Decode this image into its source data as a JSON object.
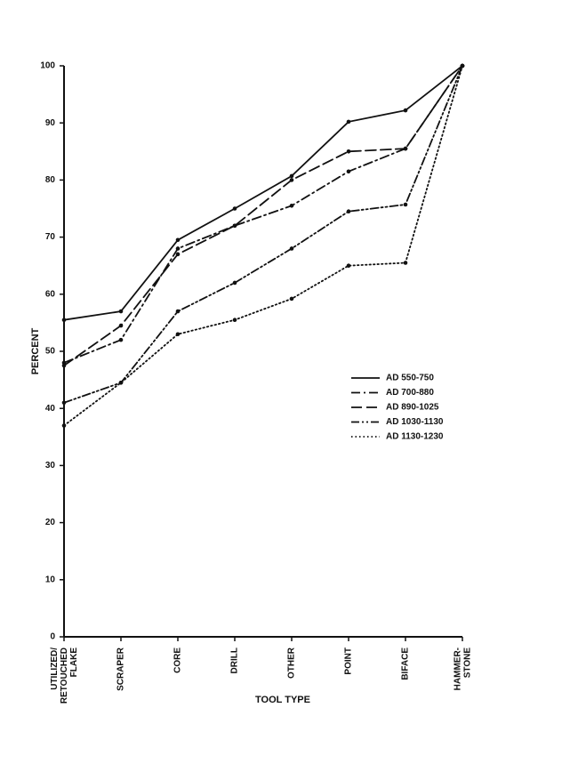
{
  "chart_data": {
    "type": "line",
    "xlabel": "TOOL TYPE",
    "ylabel": "PERCENT",
    "categories": [
      "UTILIZED/\nRETOUCHED\nFLAKE",
      "SCRAPER",
      "CORE",
      "DRILL",
      "OTHER",
      "POINT",
      "BIFACE",
      "HAMMER-\nSTONE"
    ],
    "series": [
      {
        "name": "AD 550-750",
        "color": "#111111",
        "dash": "solid",
        "values": [
          55.5,
          57,
          69.5,
          75,
          80.7,
          90.2,
          92.2,
          100
        ]
      },
      {
        "name": "AD 700-880",
        "color": "#111111",
        "dash": "dash-dot",
        "values": [
          48,
          52,
          68,
          72,
          75.5,
          81.5,
          85.5,
          100
        ]
      },
      {
        "name": "AD 890-1025",
        "color": "#111111",
        "dash": "dash",
        "values": [
          47.5,
          54.5,
          67,
          72,
          80,
          85,
          85.5,
          100
        ]
      },
      {
        "name": "AD 1030-1130",
        "color": "#111111",
        "dash": "dash-dot-dot",
        "values": [
          41,
          44.5,
          57,
          62,
          68,
          74.5,
          75.7,
          100
        ]
      },
      {
        "name": "AD 1130-1230",
        "color": "#111111",
        "dash": "dotted",
        "values": [
          37,
          44.5,
          53,
          55.5,
          59.2,
          65,
          65.5,
          100
        ]
      }
    ],
    "ylim": [
      0,
      100
    ],
    "yticks": [
      0,
      10,
      20,
      30,
      40,
      50,
      60,
      70,
      80,
      90,
      100
    ],
    "legend": "right"
  }
}
